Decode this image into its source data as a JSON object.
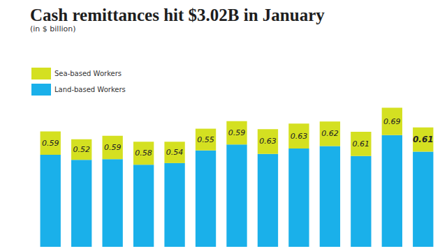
{
  "chart_data": {
    "type": "bar",
    "title": "Cash remittances hit $3.02B in January",
    "subtitle": "(in $ billion)",
    "categories": [
      null,
      null,
      null,
      null,
      null,
      null,
      null,
      null,
      null,
      null,
      null,
      null,
      null
    ],
    "series": [
      {
        "name": "Sea-based Workers",
        "color": "#d4e021",
        "data_labels": true,
        "values": [
          0.59,
          0.52,
          0.59,
          0.58,
          0.54,
          0.55,
          0.59,
          0.63,
          0.63,
          0.62,
          0.61,
          0.69,
          0.61
        ]
      },
      {
        "name": "Land-based Workers",
        "color": "#1ab0ea",
        "data_labels": false,
        "values": [
          2.33,
          2.2,
          2.22,
          2.08,
          2.12,
          2.44,
          2.59,
          2.35,
          2.49,
          2.55,
          2.3,
          2.83,
          2.41
        ]
      }
    ],
    "totals": [
      2.92,
      2.72,
      2.81,
      2.66,
      2.66,
      2.99,
      3.18,
      2.98,
      3.12,
      3.17,
      2.91,
      3.52,
      3.02
    ],
    "stacked": true,
    "ylim": [
      0,
      3.6
    ],
    "grid": false,
    "legend": "top-left",
    "tick_labels": false
  }
}
